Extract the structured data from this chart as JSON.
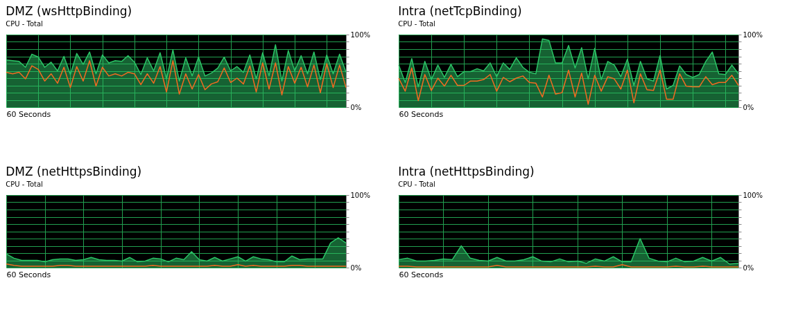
{
  "chart_data": [
    {
      "type": "area",
      "title": "DMZ (wsHttpBinding)",
      "subtitle": "CPU - Total",
      "xlabel": "60 Seconds",
      "categories": [
        null,
        null,
        null,
        null,
        null,
        null,
        null,
        null,
        null,
        null,
        null,
        null,
        null,
        null,
        null,
        null,
        null,
        null,
        null,
        null,
        null,
        null,
        null,
        null,
        null,
        null,
        null,
        null,
        null,
        null,
        null,
        null,
        null,
        null,
        null,
        null,
        null,
        null,
        null,
        null,
        null,
        null,
        null,
        null,
        null,
        null,
        null,
        null,
        null,
        null,
        null,
        null,
        null,
        null
      ],
      "series": [
        {
          "type": "area",
          "color": "#2bc466",
          "values": [
            65,
            64,
            63,
            55,
            73,
            69,
            55,
            62,
            50,
            70,
            45,
            74,
            59,
            76,
            46,
            72,
            61,
            64,
            63,
            71,
            62,
            45,
            68,
            50,
            75,
            39,
            79,
            36,
            68,
            43,
            69,
            43,
            47,
            54,
            69,
            50,
            56,
            48,
            72,
            39,
            75,
            43,
            86,
            36,
            78,
            50,
            71,
            46,
            76,
            38,
            72,
            46,
            73,
            48
          ]
        },
        {
          "type": "line",
          "color": "#f26b21",
          "values": [
            48,
            46,
            48,
            39,
            57,
            52,
            36,
            46,
            33,
            55,
            27,
            56,
            36,
            64,
            29,
            55,
            43,
            46,
            43,
            48,
            46,
            31,
            46,
            33,
            56,
            21,
            64,
            18,
            46,
            25,
            45,
            24,
            32,
            35,
            54,
            34,
            40,
            32,
            57,
            21,
            61,
            25,
            61,
            17,
            56,
            33,
            55,
            28,
            58,
            20,
            60,
            27,
            58,
            27
          ]
        }
      ],
      "ylim": [
        0,
        100
      ],
      "yticks": [
        {
          "value": 0,
          "label": "0%"
        },
        {
          "value": 10,
          "label": null
        },
        {
          "value": 20,
          "label": null
        },
        {
          "value": 30,
          "label": null
        },
        {
          "value": 40,
          "label": null
        },
        {
          "value": 50,
          "label": null
        },
        {
          "value": 60,
          "label": null
        },
        {
          "value": 70,
          "label": null
        },
        {
          "value": 80,
          "label": null
        },
        {
          "value": 90,
          "label": null
        },
        {
          "value": 100,
          "label": "100%"
        }
      ],
      "grid": true,
      "tick_labels": "y"
    },
    {
      "type": "area",
      "title": "Intra (netTcpBinding)",
      "subtitle": "CPU - Total",
      "xlabel": "60 Seconds",
      "categories": [
        null,
        null,
        null,
        null,
        null,
        null,
        null,
        null,
        null,
        null,
        null,
        null,
        null,
        null,
        null,
        null,
        null,
        null,
        null,
        null,
        null,
        null,
        null,
        null,
        null,
        null,
        null,
        null,
        null,
        null,
        null,
        null,
        null,
        null,
        null,
        null,
        null,
        null,
        null,
        null,
        null,
        null,
        null,
        null,
        null,
        null,
        null,
        null,
        null,
        null,
        null,
        null,
        null
      ],
      "series": [
        {
          "type": "area",
          "color": "#2bc466",
          "values": [
            58,
            34,
            67,
            28,
            63,
            38,
            58,
            41,
            59,
            42,
            49,
            49,
            53,
            50,
            61,
            42,
            61,
            52,
            68,
            55,
            48,
            46,
            94,
            92,
            61,
            61,
            85,
            54,
            82,
            39,
            81,
            38,
            63,
            58,
            42,
            66,
            30,
            63,
            39,
            36,
            71,
            25,
            30,
            57,
            45,
            41,
            45,
            63,
            76,
            46,
            45,
            58,
            46
          ]
        },
        {
          "type": "line",
          "color": "#f26b21",
          "values": [
            40,
            22,
            54,
            9,
            45,
            23,
            40,
            29,
            44,
            30,
            30,
            36,
            36,
            38,
            45,
            22,
            41,
            35,
            40,
            43,
            34,
            33,
            14,
            44,
            18,
            20,
            51,
            14,
            47,
            4,
            44,
            22,
            42,
            39,
            25,
            51,
            6,
            46,
            24,
            23,
            51,
            11,
            11,
            46,
            29,
            28,
            28,
            42,
            31,
            34,
            34,
            44,
            30
          ]
        }
      ],
      "ylim": [
        0,
        100
      ],
      "yticks": [
        {
          "value": 0,
          "label": "0%"
        },
        {
          "value": 10,
          "label": null
        },
        {
          "value": 20,
          "label": null
        },
        {
          "value": 30,
          "label": null
        },
        {
          "value": 40,
          "label": null
        },
        {
          "value": 50,
          "label": null
        },
        {
          "value": 60,
          "label": null
        },
        {
          "value": 70,
          "label": null
        },
        {
          "value": 80,
          "label": null
        },
        {
          "value": 90,
          "label": null
        },
        {
          "value": 100,
          "label": "100%"
        }
      ],
      "grid": true,
      "tick_labels": "y"
    },
    {
      "type": "area",
      "title": "DMZ (netHttpsBinding)",
      "subtitle": "CPU - Total",
      "xlabel": "60 Seconds",
      "categories": [
        null,
        null,
        null,
        null,
        null,
        null,
        null,
        null,
        null,
        null,
        null,
        null,
        null,
        null,
        null,
        null,
        null,
        null,
        null,
        null,
        null,
        null,
        null,
        null,
        null,
        null,
        null,
        null,
        null,
        null,
        null,
        null,
        null,
        null,
        null,
        null,
        null,
        null,
        null,
        null,
        null,
        null,
        null,
        null,
        null
      ],
      "series": [
        {
          "type": "area",
          "color": "#2bc466",
          "values": [
            19,
            13,
            10,
            10,
            10,
            8,
            11,
            12,
            12,
            10,
            11,
            14,
            11,
            10,
            10,
            9,
            14,
            8,
            9,
            13,
            12,
            8,
            13,
            11,
            22,
            11,
            9,
            14,
            9,
            12,
            15,
            9,
            15,
            12,
            11,
            8,
            8,
            16,
            11,
            12,
            12,
            12,
            34,
            41,
            34
          ]
        },
        {
          "type": "line",
          "color": "#f26b21",
          "values": [
            5,
            3,
            2,
            2,
            2,
            2,
            2,
            3,
            3,
            2,
            2,
            2,
            2,
            2,
            2,
            2,
            2,
            2,
            2,
            3,
            2,
            2,
            2,
            2,
            2,
            2,
            2,
            3,
            2,
            2,
            4,
            2,
            3,
            2,
            2,
            2,
            2,
            3,
            3,
            2,
            2,
            2,
            2,
            2,
            2
          ]
        }
      ],
      "ylim": [
        0,
        100
      ],
      "yticks": [
        {
          "value": 0,
          "label": "0%"
        },
        {
          "value": 10,
          "label": null
        },
        {
          "value": 20,
          "label": null
        },
        {
          "value": 30,
          "label": null
        },
        {
          "value": 40,
          "label": null
        },
        {
          "value": 50,
          "label": null
        },
        {
          "value": 60,
          "label": null
        },
        {
          "value": 70,
          "label": null
        },
        {
          "value": 80,
          "label": null
        },
        {
          "value": 90,
          "label": null
        },
        {
          "value": 100,
          "label": "100%"
        }
      ],
      "grid": true,
      "tick_labels": "y"
    },
    {
      "type": "area",
      "title": "Intra (netHttpsBinding)",
      "subtitle": "CPU - Total",
      "xlabel": "60 Seconds",
      "categories": [
        null,
        null,
        null,
        null,
        null,
        null,
        null,
        null,
        null,
        null,
        null,
        null,
        null,
        null,
        null,
        null,
        null,
        null,
        null,
        null,
        null,
        null,
        null,
        null,
        null,
        null,
        null,
        null,
        null,
        null,
        null,
        null,
        null,
        null,
        null,
        null,
        null,
        null,
        null
      ],
      "series": [
        {
          "type": "area",
          "color": "#2bc466",
          "values": [
            11,
            13,
            9,
            9,
            10,
            12,
            11,
            30,
            13,
            10,
            9,
            14,
            9,
            9,
            11,
            15,
            9,
            8,
            12,
            8,
            9,
            6,
            12,
            9,
            15,
            8,
            8,
            40,
            13,
            9,
            8,
            13,
            8,
            9,
            14,
            9,
            14,
            5,
            6
          ]
        },
        {
          "type": "line",
          "color": "#f26b21",
          "values": [
            2,
            2,
            1,
            1,
            1,
            1,
            1,
            1,
            1,
            1,
            1,
            3,
            1,
            1,
            1,
            1,
            1,
            1,
            1,
            1,
            1,
            1,
            2,
            1,
            1,
            4,
            1,
            1,
            1,
            1,
            1,
            2,
            1,
            1,
            2,
            1,
            1,
            1,
            1
          ]
        }
      ],
      "ylim": [
        0,
        100
      ],
      "yticks": [
        {
          "value": 0,
          "label": "0%"
        },
        {
          "value": 10,
          "label": null
        },
        {
          "value": 20,
          "label": null
        },
        {
          "value": 30,
          "label": null
        },
        {
          "value": 40,
          "label": null
        },
        {
          "value": 50,
          "label": null
        },
        {
          "value": 60,
          "label": null
        },
        {
          "value": 70,
          "label": null
        },
        {
          "value": 80,
          "label": null
        },
        {
          "value": 90,
          "label": null
        },
        {
          "value": 100,
          "label": "100%"
        }
      ],
      "grid": true,
      "tick_labels": "y"
    }
  ]
}
